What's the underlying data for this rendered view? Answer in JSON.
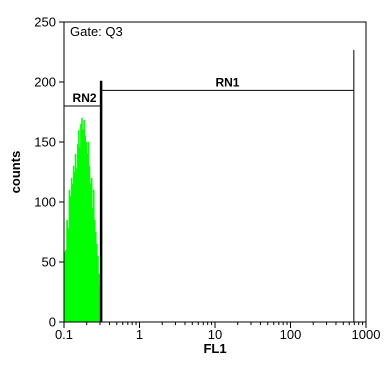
{
  "chart_data": {
    "type": "histogram",
    "title": "",
    "gate_label": "Gate: Q3",
    "xlabel": "FL1",
    "ylabel": "counts",
    "x_scale": "log",
    "xlim": [
      0.1,
      1000
    ],
    "ylim": [
      0,
      250
    ],
    "x_ticks": [
      0.1,
      1,
      10,
      100,
      1000
    ],
    "x_tick_labels": [
      "0.1",
      "1",
      "10",
      "100",
      "1000"
    ],
    "y_ticks": [
      0,
      50,
      100,
      150,
      200,
      250
    ],
    "y_tick_labels": [
      "0",
      "50",
      "100",
      "150",
      "200",
      "250"
    ],
    "histogram_color": "#00ff00",
    "histogram": {
      "x": [
        0.1,
        0.104,
        0.108,
        0.112,
        0.116,
        0.12,
        0.124,
        0.128,
        0.132,
        0.136,
        0.14,
        0.145,
        0.15,
        0.155,
        0.16,
        0.165,
        0.17,
        0.176,
        0.182,
        0.188,
        0.194,
        0.2,
        0.207,
        0.214,
        0.221,
        0.228,
        0.236,
        0.244,
        0.252,
        0.26,
        0.268,
        0.277,
        0.286,
        0.295,
        0.3,
        0.305,
        0.31
      ],
      "y": [
        58,
        60,
        85,
        78,
        110,
        105,
        120,
        115,
        130,
        125,
        140,
        128,
        148,
        160,
        145,
        165,
        170,
        160,
        168,
        155,
        150,
        140,
        150,
        130,
        115,
        120,
        95,
        110,
        85,
        75,
        65,
        55,
        40,
        30,
        20,
        10,
        0
      ]
    },
    "markers": [
      {
        "label": "RN2",
        "x_start": 0.1,
        "x_end": 0.31,
        "y": 180
      },
      {
        "label": "RN1",
        "x_start": 0.31,
        "x_end": 690,
        "y": 193
      }
    ]
  }
}
